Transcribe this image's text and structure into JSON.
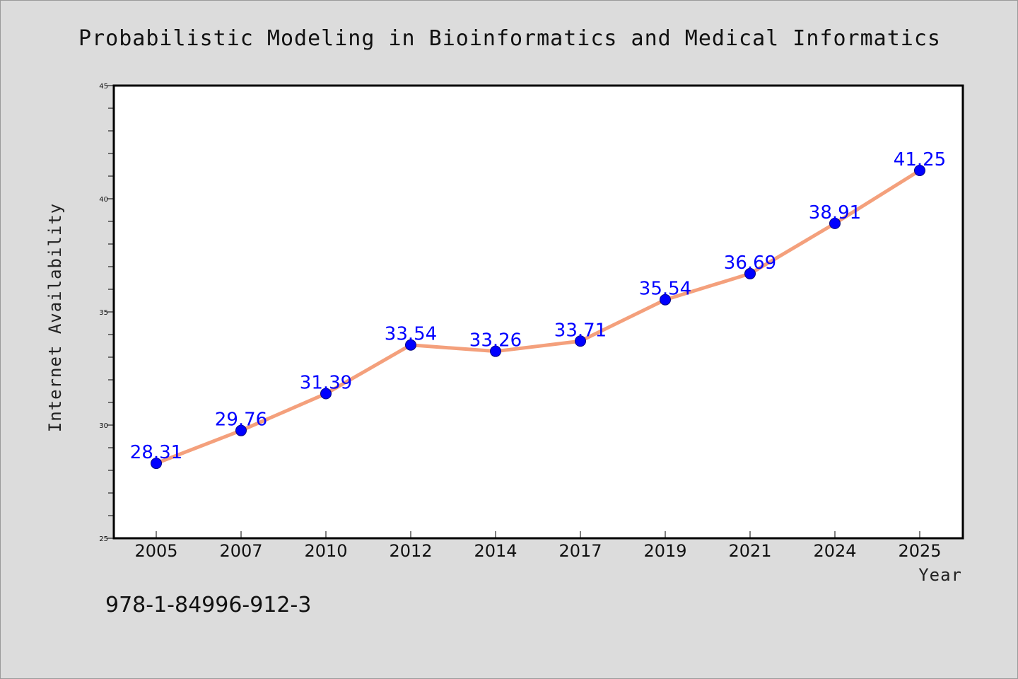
{
  "chart_data": {
    "type": "line",
    "title": "Probabilistic Modeling in Bioinformatics and Medical Informatics",
    "xlabel": "Year",
    "ylabel": "Internet Availability",
    "categories": [
      "2005",
      "2007",
      "2010",
      "2012",
      "2014",
      "2017",
      "2019",
      "2021",
      "2024",
      "2025"
    ],
    "series": [
      {
        "values": [
          28.31,
          29.76,
          31.39,
          33.54,
          33.26,
          33.71,
          35.54,
          36.69,
          38.91,
          41.25
        ],
        "labels": [
          "28.31",
          "29.76",
          "31.39",
          "33.54",
          "33.26",
          "33.71",
          "35.54",
          "36.69",
          "38.91",
          "41.25"
        ],
        "line_color": "#f4a07c",
        "marker_color": "#0000ff"
      }
    ],
    "ylim": [
      25,
      45
    ],
    "yticks": [
      25,
      30,
      35,
      40,
      45
    ],
    "ytick_labels": [
      "25",
      "30",
      "35",
      "40",
      "45"
    ],
    "minor_ytick_step": 1,
    "grid": false,
    "legend": "none"
  },
  "footer": {
    "isbn": "978-1-84996-912-3"
  },
  "colors": {
    "background": "#dcdcdc",
    "plot_background": "#ffffff",
    "axis": "#000000"
  }
}
